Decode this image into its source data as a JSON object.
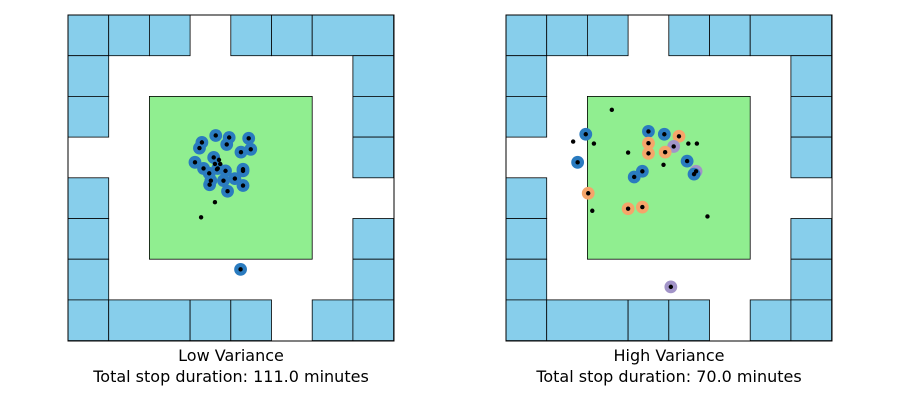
{
  "colors": {
    "building": "#87ceeb",
    "plaza": "#90ee90",
    "street": "#ffffff",
    "stop_blue": "#2a7bbf",
    "stop_orange": "#f5a56a",
    "stop_purple": "#a294c8",
    "point": "#000000"
  },
  "panels": [
    {
      "title": "Low Variance",
      "subtitle": "Total stop duration: 111.0 minutes",
      "stops": [
        {
          "x": 3.29,
          "y": 4.88,
          "c": "blue"
        },
        {
          "x": 3.63,
          "y": 5.05,
          "c": "blue"
        },
        {
          "x": 3.96,
          "y": 5.0,
          "c": "blue"
        },
        {
          "x": 4.44,
          "y": 4.98,
          "c": "blue"
        },
        {
          "x": 3.23,
          "y": 4.74,
          "c": "blue"
        },
        {
          "x": 3.9,
          "y": 4.83,
          "c": "blue"
        },
        {
          "x": 4.25,
          "y": 4.64,
          "c": "blue"
        },
        {
          "x": 4.49,
          "y": 4.71,
          "c": "blue"
        },
        {
          "x": 3.58,
          "y": 4.51,
          "c": "blue"
        },
        {
          "x": 3.12,
          "y": 4.39,
          "c": "blue"
        },
        {
          "x": 3.33,
          "y": 4.24,
          "c": "blue"
        },
        {
          "x": 3.68,
          "y": 4.24,
          "c": "blue"
        },
        {
          "x": 3.87,
          "y": 4.18,
          "c": "blue"
        },
        {
          "x": 4.3,
          "y": 4.22,
          "c": "blue"
        },
        {
          "x": 4.1,
          "y": 3.99,
          "c": "blue"
        },
        {
          "x": 3.48,
          "y": 3.84,
          "c": "blue"
        },
        {
          "x": 3.51,
          "y": 3.94,
          "c": "blue"
        },
        {
          "x": 3.47,
          "y": 4.12,
          "c": "blue"
        },
        {
          "x": 3.82,
          "y": 3.94,
          "c": "blue"
        },
        {
          "x": 4.3,
          "y": 4.18,
          "c": "blue"
        },
        {
          "x": 4.3,
          "y": 3.82,
          "c": "blue"
        },
        {
          "x": 3.92,
          "y": 3.68,
          "c": "blue"
        },
        {
          "x": 4.24,
          "y": 1.76,
          "c": "blue"
        }
      ],
      "points": [
        {
          "x": 3.29,
          "y": 4.88
        },
        {
          "x": 3.63,
          "y": 5.05
        },
        {
          "x": 3.96,
          "y": 5.0
        },
        {
          "x": 4.44,
          "y": 4.98
        },
        {
          "x": 3.23,
          "y": 4.74
        },
        {
          "x": 3.9,
          "y": 4.83
        },
        {
          "x": 4.25,
          "y": 4.64
        },
        {
          "x": 4.49,
          "y": 4.71
        },
        {
          "x": 3.58,
          "y": 4.51
        },
        {
          "x": 3.12,
          "y": 4.39
        },
        {
          "x": 3.33,
          "y": 4.24
        },
        {
          "x": 3.68,
          "y": 4.24
        },
        {
          "x": 3.87,
          "y": 4.18
        },
        {
          "x": 4.3,
          "y": 4.22
        },
        {
          "x": 4.1,
          "y": 3.99
        },
        {
          "x": 3.48,
          "y": 3.84
        },
        {
          "x": 3.51,
          "y": 3.94
        },
        {
          "x": 3.47,
          "y": 4.12
        },
        {
          "x": 3.82,
          "y": 3.94
        },
        {
          "x": 4.3,
          "y": 4.18
        },
        {
          "x": 4.3,
          "y": 3.82
        },
        {
          "x": 3.92,
          "y": 3.68
        },
        {
          "x": 4.24,
          "y": 1.76
        },
        {
          "x": 3.71,
          "y": 4.45
        },
        {
          "x": 3.61,
          "y": 4.35
        },
        {
          "x": 3.74,
          "y": 4.35
        },
        {
          "x": 3.66,
          "y": 4.22
        },
        {
          "x": 3.61,
          "y": 3.41
        },
        {
          "x": 3.27,
          "y": 3.04
        }
      ]
    },
    {
      "title": "High Variance",
      "subtitle": "Total stop duration: 70.0 minutes",
      "stops": [
        {
          "x": 1.96,
          "y": 5.08,
          "c": "blue"
        },
        {
          "x": 3.5,
          "y": 5.15,
          "c": "blue"
        },
        {
          "x": 3.89,
          "y": 5.08,
          "c": "blue"
        },
        {
          "x": 4.25,
          "y": 5.03,
          "c": "orange"
        },
        {
          "x": 3.5,
          "y": 4.86,
          "c": "orange"
        },
        {
          "x": 4.12,
          "y": 4.78,
          "c": "purple"
        },
        {
          "x": 3.5,
          "y": 4.61,
          "c": "orange"
        },
        {
          "x": 3.91,
          "y": 4.64,
          "c": "orange"
        },
        {
          "x": 1.76,
          "y": 4.39,
          "c": "blue"
        },
        {
          "x": 4.45,
          "y": 4.42,
          "c": "blue"
        },
        {
          "x": 3.35,
          "y": 4.17,
          "c": "blue"
        },
        {
          "x": 3.15,
          "y": 4.03,
          "c": "blue"
        },
        {
          "x": 4.67,
          "y": 4.17,
          "c": "purple"
        },
        {
          "x": 4.62,
          "y": 4.1,
          "c": "blue"
        },
        {
          "x": 2.02,
          "y": 3.63,
          "c": "orange"
        },
        {
          "x": 3.35,
          "y": 3.29,
          "c": "orange"
        },
        {
          "x": 3.0,
          "y": 3.25,
          "c": "orange"
        },
        {
          "x": 4.05,
          "y": 1.33,
          "c": "purple"
        }
      ],
      "points": [
        {
          "x": 1.96,
          "y": 5.08
        },
        {
          "x": 3.5,
          "y": 5.15
        },
        {
          "x": 3.89,
          "y": 5.08
        },
        {
          "x": 4.25,
          "y": 5.03
        },
        {
          "x": 3.5,
          "y": 4.86
        },
        {
          "x": 4.12,
          "y": 4.78
        },
        {
          "x": 3.5,
          "y": 4.61
        },
        {
          "x": 3.91,
          "y": 4.64
        },
        {
          "x": 1.76,
          "y": 4.39
        },
        {
          "x": 4.45,
          "y": 4.42
        },
        {
          "x": 3.35,
          "y": 4.17
        },
        {
          "x": 3.15,
          "y": 4.03
        },
        {
          "x": 4.67,
          "y": 4.17
        },
        {
          "x": 4.62,
          "y": 4.1
        },
        {
          "x": 2.02,
          "y": 3.63
        },
        {
          "x": 3.35,
          "y": 3.29
        },
        {
          "x": 3.0,
          "y": 3.25
        },
        {
          "x": 4.05,
          "y": 1.33
        },
        {
          "x": 2.6,
          "y": 5.68
        },
        {
          "x": 1.65,
          "y": 4.9
        },
        {
          "x": 2.16,
          "y": 4.85
        },
        {
          "x": 3.0,
          "y": 4.63
        },
        {
          "x": 4.48,
          "y": 4.85
        },
        {
          "x": 4.69,
          "y": 4.85
        },
        {
          "x": 3.87,
          "y": 4.33
        },
        {
          "x": 2.12,
          "y": 3.2
        },
        {
          "x": 4.95,
          "y": 3.06
        }
      ]
    }
  ]
}
